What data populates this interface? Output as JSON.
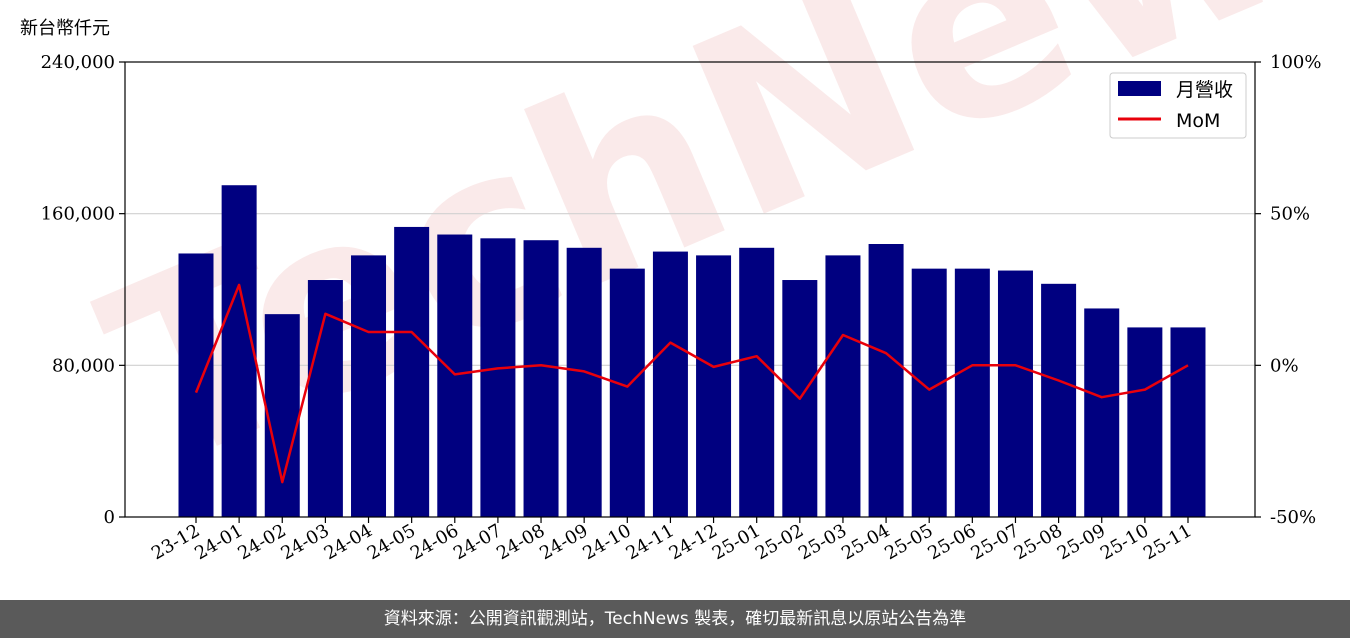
{
  "chart_data": {
    "type": "bar",
    "y_unit_label": "新台幣仟元",
    "categories": [
      "23-12",
      "24-01",
      "24-02",
      "24-03",
      "24-04",
      "24-05",
      "24-06",
      "24-07",
      "24-08",
      "24-09",
      "24-10",
      "24-11",
      "24-12",
      "25-01",
      "25-02",
      "25-03",
      "25-04",
      "25-05",
      "25-06",
      "25-07",
      "25-08",
      "25-09",
      "25-10",
      "25-11"
    ],
    "series": [
      {
        "name": "月營收",
        "type": "bar",
        "axis": "left",
        "color": "#000080",
        "values": [
          139000,
          175000,
          107000,
          125000,
          138000,
          153000,
          149000,
          147000,
          146000,
          142000,
          131000,
          140000,
          138000,
          142000,
          125000,
          138000,
          144000,
          131000,
          131000,
          130000,
          123000,
          110000,
          100000,
          100000
        ]
      },
      {
        "name": "MoM",
        "type": "line",
        "axis": "right",
        "color": "#e8000b",
        "unit": "%",
        "values": [
          -9,
          26.5,
          -38.5,
          17,
          11,
          11,
          -3,
          -1,
          0,
          -2,
          -7,
          7.5,
          -0.5,
          3,
          -11,
          10,
          4,
          -8,
          0,
          0,
          -5,
          -10.5,
          -8,
          0
        ]
      }
    ],
    "left_axis": {
      "ylim": [
        0,
        240000
      ],
      "ticks": [
        0,
        80000,
        160000,
        240000
      ],
      "tick_labels": [
        "0",
        "80,000",
        "160,000",
        "240,000"
      ]
    },
    "right_axis": {
      "ylim": [
        -50,
        100
      ],
      "ticks": [
        -50,
        0,
        50,
        100
      ],
      "tick_labels": [
        "-50%",
        "0%",
        "50%",
        "100%"
      ]
    },
    "grid": "horizontal",
    "legend_position": "top-right",
    "watermark": "TechNews"
  },
  "footer": {
    "source_text": "資料來源：公開資訊觀測站，TechNews 製表，確切最新訊息以原站公告為準"
  }
}
